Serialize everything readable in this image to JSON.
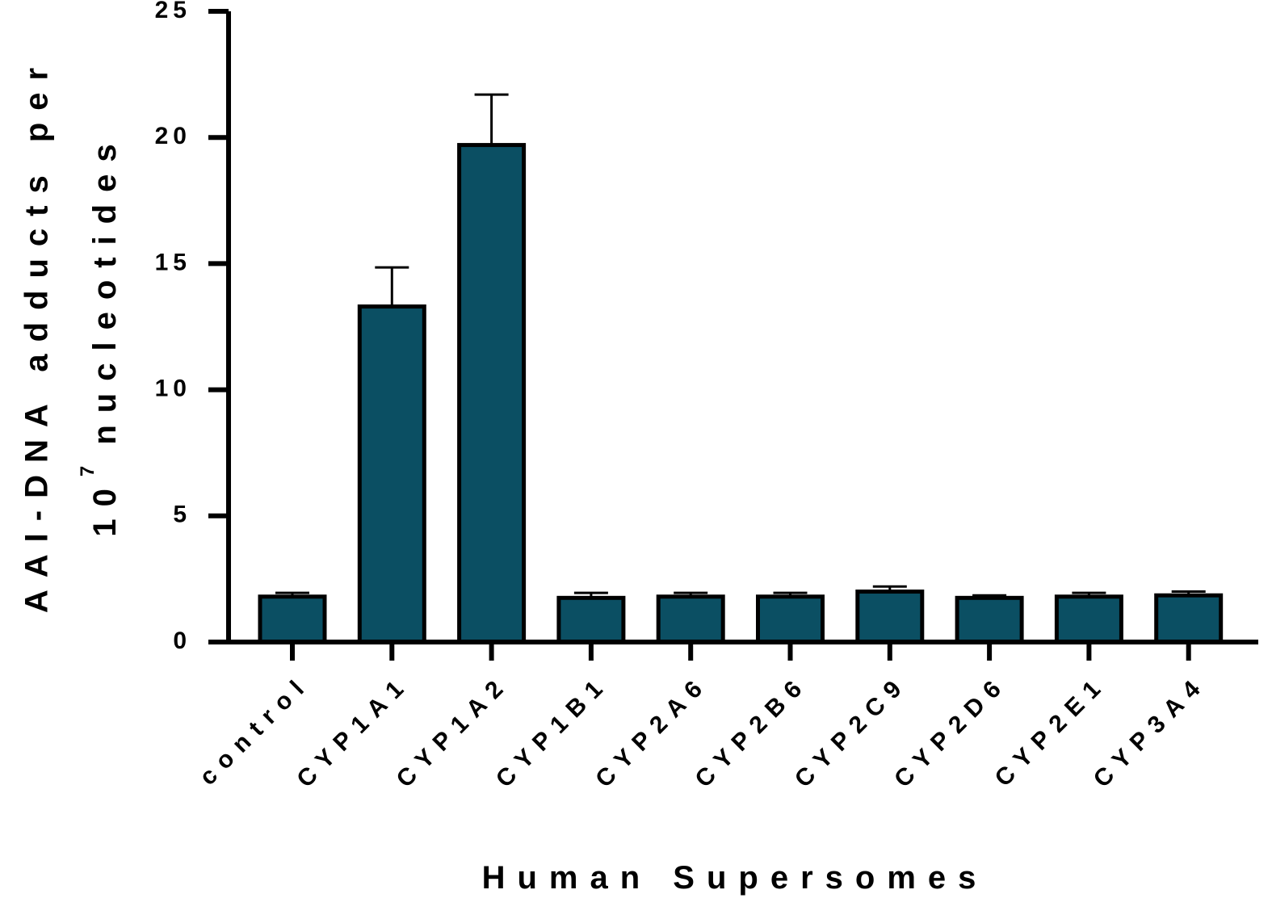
{
  "chart_data": {
    "type": "bar",
    "title": "",
    "xlabel": "Human Supersomes",
    "ylabel": {
      "line1": "AAI-DNA adducts per",
      "line2_base": "10",
      "line2_sup": "7",
      "line2_rest": " nucleotides"
    },
    "ylim": [
      0,
      25
    ],
    "yticks": [
      "0",
      "5",
      "10",
      "15",
      "20",
      "25"
    ],
    "grid": false,
    "categories": [
      "control",
      "CYP1A1",
      "CYP1A2",
      "CYP1B1",
      "CYP2A6",
      "CYP2B6",
      "CYP2C9",
      "CYP2D6",
      "CYP2E1",
      "CYP3A4"
    ],
    "values": [
      1.8,
      13.3,
      19.7,
      1.75,
      1.8,
      1.8,
      2.0,
      1.75,
      1.8,
      1.85
    ],
    "errors": [
      0.15,
      1.55,
      2.0,
      0.2,
      0.15,
      0.15,
      0.2,
      0.1,
      0.15,
      0.15
    ],
    "colors": {
      "bar": "#0b4f63",
      "outline": "#000000",
      "axis": "#000000"
    }
  }
}
